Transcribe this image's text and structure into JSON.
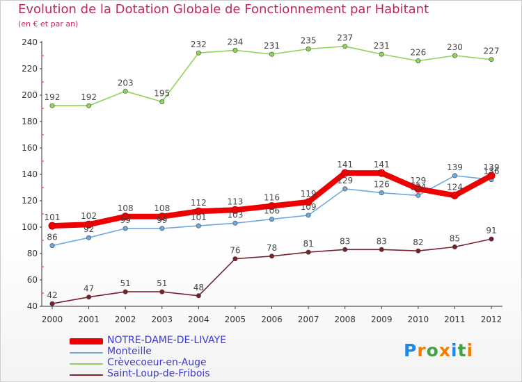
{
  "title": "Evolution de la Dotation Globale de Fonctionnement par Habitant",
  "subtitle": "(en € et par an)",
  "logo": {
    "text": "Proxiti",
    "letters": [
      "P",
      "r",
      "o",
      "x",
      "i",
      "t",
      "i"
    ],
    "colors": [
      "#1e88e5",
      "#f57c00",
      "#43a047",
      "#f57c00",
      "#1e88e5",
      "#43a047",
      "#f57c00"
    ]
  },
  "chart_data": {
    "type": "line",
    "title": "Evolution de la Dotation Globale de Fonctionnement par Habitant",
    "subtitle": "(en € et par an)",
    "x": [
      2000,
      2001,
      2002,
      2003,
      2004,
      2005,
      2006,
      2007,
      2008,
      2009,
      2010,
      2011,
      2012
    ],
    "ylim": [
      40,
      240
    ],
    "yticks": [
      40,
      60,
      80,
      100,
      120,
      140,
      160,
      180,
      200,
      220,
      240
    ],
    "grid": false,
    "legend_position": "bottom-left",
    "series": [
      {
        "name": "NOTRE-DAME-DE-LIVAYE",
        "color": "#ee0000",
        "style": "bold",
        "values": [
          101,
          102,
          108,
          108,
          112,
          113,
          116,
          119,
          141,
          141,
          129,
          124,
          139
        ]
      },
      {
        "name": "Monteille",
        "color": "#6fa8dc",
        "style": "thin",
        "values": [
          86,
          92,
          99,
          99,
          101,
          103,
          106,
          109,
          129,
          126,
          124,
          139,
          136
        ]
      },
      {
        "name": "Crèvecoeur-en-Auge",
        "color": "#8fd45a",
        "style": "thin",
        "values": [
          192,
          192,
          203,
          195,
          232,
          234,
          231,
          235,
          237,
          231,
          226,
          230,
          227
        ]
      },
      {
        "name": "Saint-Loup-de-Fribois",
        "color": "#7a1f2b",
        "style": "thin",
        "values": [
          42,
          47,
          51,
          51,
          48,
          76,
          78,
          81,
          83,
          83,
          82,
          85,
          91
        ]
      }
    ]
  }
}
